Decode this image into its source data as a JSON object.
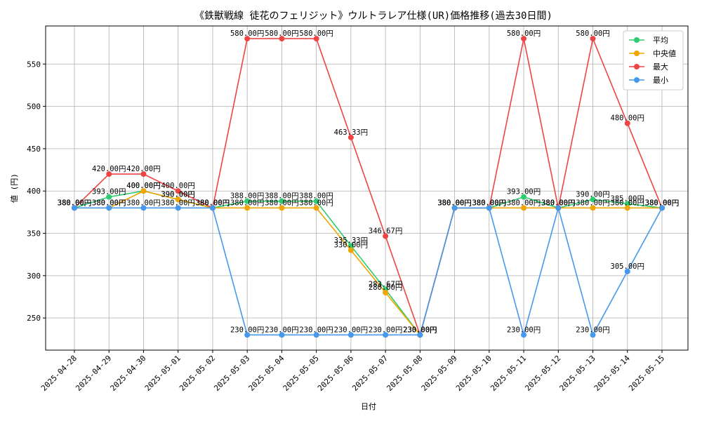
{
  "chart_data": {
    "type": "line",
    "title": "《鉄獣戦線 徒花のフェリジット》ウルトラレア仕様(UR)価格推移(過去30日間)",
    "xlabel": "日付",
    "ylabel": "値 (円)",
    "ylim": [
      212,
      595
    ],
    "yticks": [
      250,
      300,
      350,
      400,
      450,
      500,
      550
    ],
    "grid": true,
    "legend_position": "top-right",
    "categories": [
      "2025-04-28",
      "2025-04-29",
      "2025-04-30",
      "2025-05-01",
      "2025-05-02",
      "2025-05-03",
      "2025-05-04",
      "2025-05-05",
      "2025-05-06",
      "2025-05-07",
      "2025-05-08",
      "2025-05-09",
      "2025-05-10",
      "2025-05-11",
      "2025-05-12",
      "2025-05-13",
      "2025-05-14",
      "2025-05-15"
    ],
    "series": [
      {
        "name": "平均",
        "color": "#2ecc71",
        "values": [
          380,
          393,
          400,
          390,
          380,
          388,
          388,
          388,
          335.33,
          283.67,
          230,
          380,
          380,
          393,
          380,
          390,
          385,
          380
        ],
        "labels": {
          "0": "380.00円",
          "1": "393.00円",
          "2": "400.00円",
          "3": "390.00円",
          "4": "380.00円",
          "5": "388.00円",
          "6": "388.00円",
          "7": "388.00円",
          "8": "335.33円",
          "9": "283.67円",
          "10": "230.00円",
          "11": "380.00円",
          "12": "380.00円",
          "13": "393.00円",
          "14": "380.00円",
          "15": "390.00円",
          "16": "385.00円",
          "17": "380.00円"
        }
      },
      {
        "name": "中央値",
        "color": "#f0a500",
        "values": [
          380,
          380,
          400,
          390,
          380,
          380,
          380,
          380,
          330,
          280,
          230,
          380,
          380,
          380,
          380,
          380,
          380,
          380
        ],
        "labels": {
          "0": "380.00円",
          "1": "380.00円",
          "2": "400.00円",
          "3": "390.00円",
          "4": "380.00円",
          "5": "380.00円",
          "6": "380.00円",
          "7": "380.00円",
          "8": "330.00円",
          "9": "280.00円",
          "10": "230.00円",
          "11": "380.00円",
          "12": "380.00円",
          "13": "380.00円",
          "14": "380.00円",
          "15": "380.00円",
          "16": "380.00円",
          "17": "380.00円"
        }
      },
      {
        "name": "最大",
        "color": "#ee4444",
        "values": [
          380,
          420,
          420,
          400,
          380,
          580,
          580,
          580,
          463.33,
          346.67,
          230,
          380,
          380,
          580,
          380,
          580,
          480,
          380
        ],
        "labels": {
          "0": "380.00円",
          "1": "420.00円",
          "2": "420.00円",
          "3": "400.00円",
          "4": "380.00円",
          "5": "580.00円",
          "6": "580.00円",
          "7": "580.00円",
          "8": "463.33円",
          "9": "346.67円",
          "10": "230.00円",
          "11": "380.00円",
          "12": "380.00円",
          "13": "580.00円",
          "14": "380.00円",
          "15": "580.00円",
          "16": "480.00円",
          "17": "380.00円"
        }
      },
      {
        "name": "最小",
        "color": "#4499ee",
        "values": [
          380,
          380,
          380,
          380,
          380,
          230,
          230,
          230,
          230,
          230,
          230,
          380,
          380,
          230,
          380,
          230,
          305,
          380
        ],
        "labels": {
          "0": "380.00円",
          "1": "380.00円",
          "2": "380.00円",
          "3": "380.00円",
          "4": "380.00円",
          "5": "230.00円",
          "6": "230.00円",
          "7": "230.00円",
          "8": "230.00円",
          "9": "230.00円",
          "10": "230.00円",
          "11": "380.00円",
          "12": "380.00円",
          "13": "230.00円",
          "14": "380.00円",
          "15": "230.00円",
          "16": "305.00円",
          "17": "380.00円"
        }
      }
    ]
  }
}
